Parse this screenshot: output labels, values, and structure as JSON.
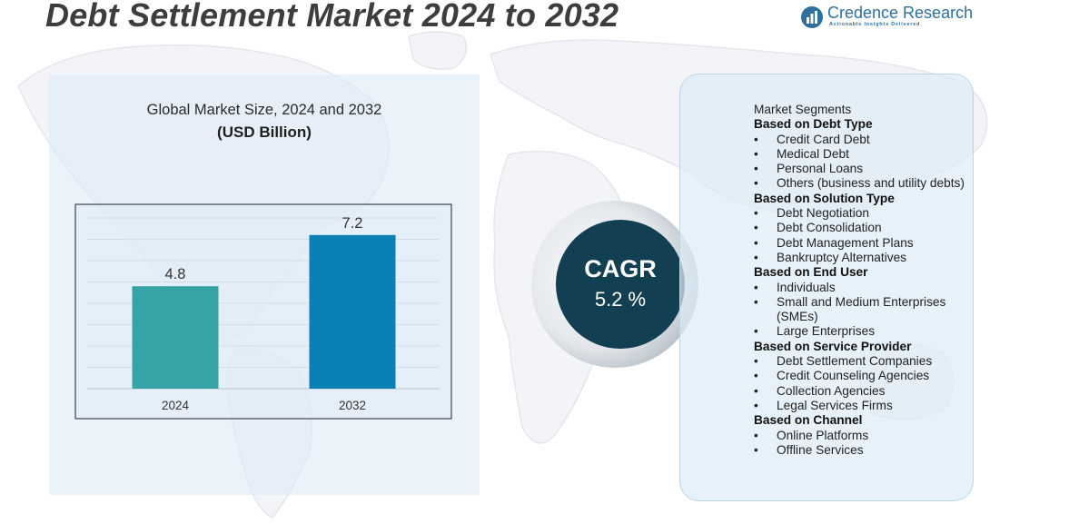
{
  "title": "Debt Settlement Market 2024 to 2032",
  "logo": {
    "name": "Credence Research",
    "tagline": "Actionable Insights Delivered",
    "icon": "credence-logo-icon",
    "color": "#2e6f9e"
  },
  "chart": {
    "title": "Global Market Size,  2024 and 2032",
    "subtitle": "(USD Billion)"
  },
  "chart_data": {
    "type": "bar",
    "title": "Global Market Size,  2024 and 2032",
    "subtitle": "(USD Billion)",
    "categories": [
      "2024",
      "2032"
    ],
    "values": [
      4.8,
      7.2
    ],
    "data_labels": [
      "4.8",
      "7.2"
    ],
    "colors": [
      "#36a4a6",
      "#0a80b4"
    ],
    "xlabel": "",
    "ylabel": "",
    "ylim": [
      0,
      8
    ],
    "grid": true,
    "legend": "none"
  },
  "cagr": {
    "label": "CAGR",
    "value": "5.2 %",
    "color": "#133f52"
  },
  "segments": {
    "heading": "Market Segments",
    "groups": [
      {
        "title": "Based on Debt Type",
        "items": [
          "Credit Card Debt",
          "Medical Debt",
          "Personal Loans",
          "Others (business and utility debts)"
        ]
      },
      {
        "title": "Based on Solution Type",
        "items": [
          "Debt Negotiation",
          "Debt Consolidation",
          "Debt Management Plans",
          "Bankruptcy Alternatives"
        ]
      },
      {
        "title": "Based on End User",
        "items": [
          "Individuals",
          "Small and Medium Enterprises (SMEs)",
          "Large Enterprises"
        ]
      },
      {
        "title": "Based on Service  Provider",
        "items": [
          "Debt Settlement Companies",
          "Credit Counseling Agencies",
          "Collection Agencies",
          "Legal Services Firms"
        ]
      },
      {
        "title": "Based on Channel",
        "items": [
          "Online Platforms",
          "Offline Services"
        ]
      }
    ]
  }
}
